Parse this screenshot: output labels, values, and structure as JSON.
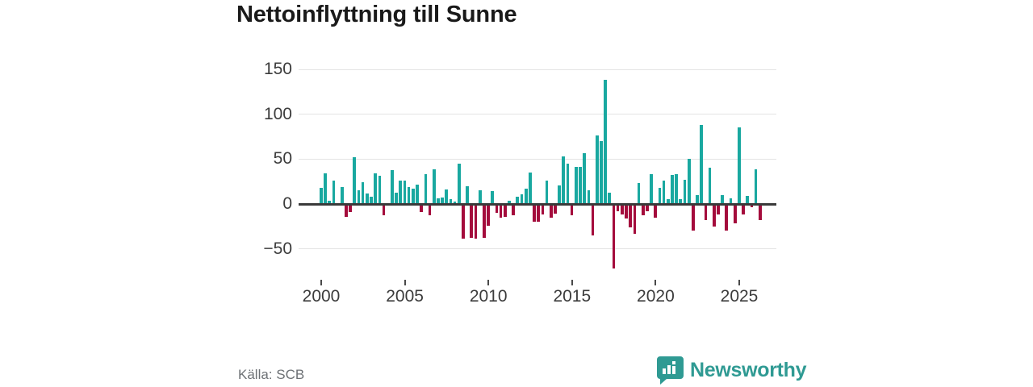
{
  "title": "Nettoinflyttning till Sunne",
  "source": "Källa: SCB",
  "branding": {
    "name": "Newsworthy",
    "icon": "newsworthy-speech-bubble-bar-chart-icon",
    "color": "#2f9a93"
  },
  "colors": {
    "positive_bar": "#19a8a0",
    "negative_bar": "#a40c3c",
    "zero_axis_line": "#3a3a3a",
    "gridline": "#e4e4e4",
    "axis_text": "#3c3c3c",
    "title_text": "#1a1a1a",
    "source_text": "#6d7175"
  },
  "chart_data": {
    "type": "bar",
    "title": "Nettoinflyttning till Sunne",
    "xlabel": "",
    "ylabel": "",
    "x_unit": "quarter",
    "x_start": "2000-Q1",
    "x_end": "2025-Q4",
    "grid": true,
    "ylim": [
      -80,
      160
    ],
    "y_ticks": [
      150,
      100,
      50,
      0,
      -50
    ],
    "y_tick_labels": [
      "150",
      "100",
      "50",
      "0",
      "−50"
    ],
    "x_tick_years": [
      2000,
      2005,
      2010,
      2015,
      2020,
      2025
    ],
    "x_tick_labels": [
      "2000",
      "2005",
      "2010",
      "2015",
      "2020",
      "2025"
    ],
    "series_name": "Nettoinflyttning (netto per kvartal)",
    "values": [
      18,
      34,
      4,
      26,
      0,
      19,
      -14,
      -9,
      52,
      15,
      24,
      12,
      8,
      34,
      31,
      -13,
      0,
      38,
      13,
      26,
      26,
      19,
      17,
      22,
      -9,
      33,
      -13,
      39,
      6,
      7,
      16,
      5,
      3,
      45,
      -39,
      20,
      -38,
      -39,
      15,
      -38,
      -24,
      14,
      -10,
      -15,
      -14,
      4,
      -13,
      8,
      11,
      17,
      35,
      -20,
      -20,
      -12,
      26,
      -15,
      -11,
      21,
      53,
      45,
      -13,
      41,
      41,
      57,
      15,
      -35,
      76,
      70,
      138,
      13,
      -72,
      -8,
      -12,
      -16,
      -26,
      -33,
      23,
      -13,
      -8,
      33,
      -15,
      18,
      26,
      5,
      32,
      33,
      5,
      27,
      50,
      -30,
      10,
      88,
      -18,
      40,
      -25,
      -12,
      10,
      -30,
      6,
      -22,
      85,
      -12,
      9,
      -4,
      39,
      -18
    ]
  }
}
